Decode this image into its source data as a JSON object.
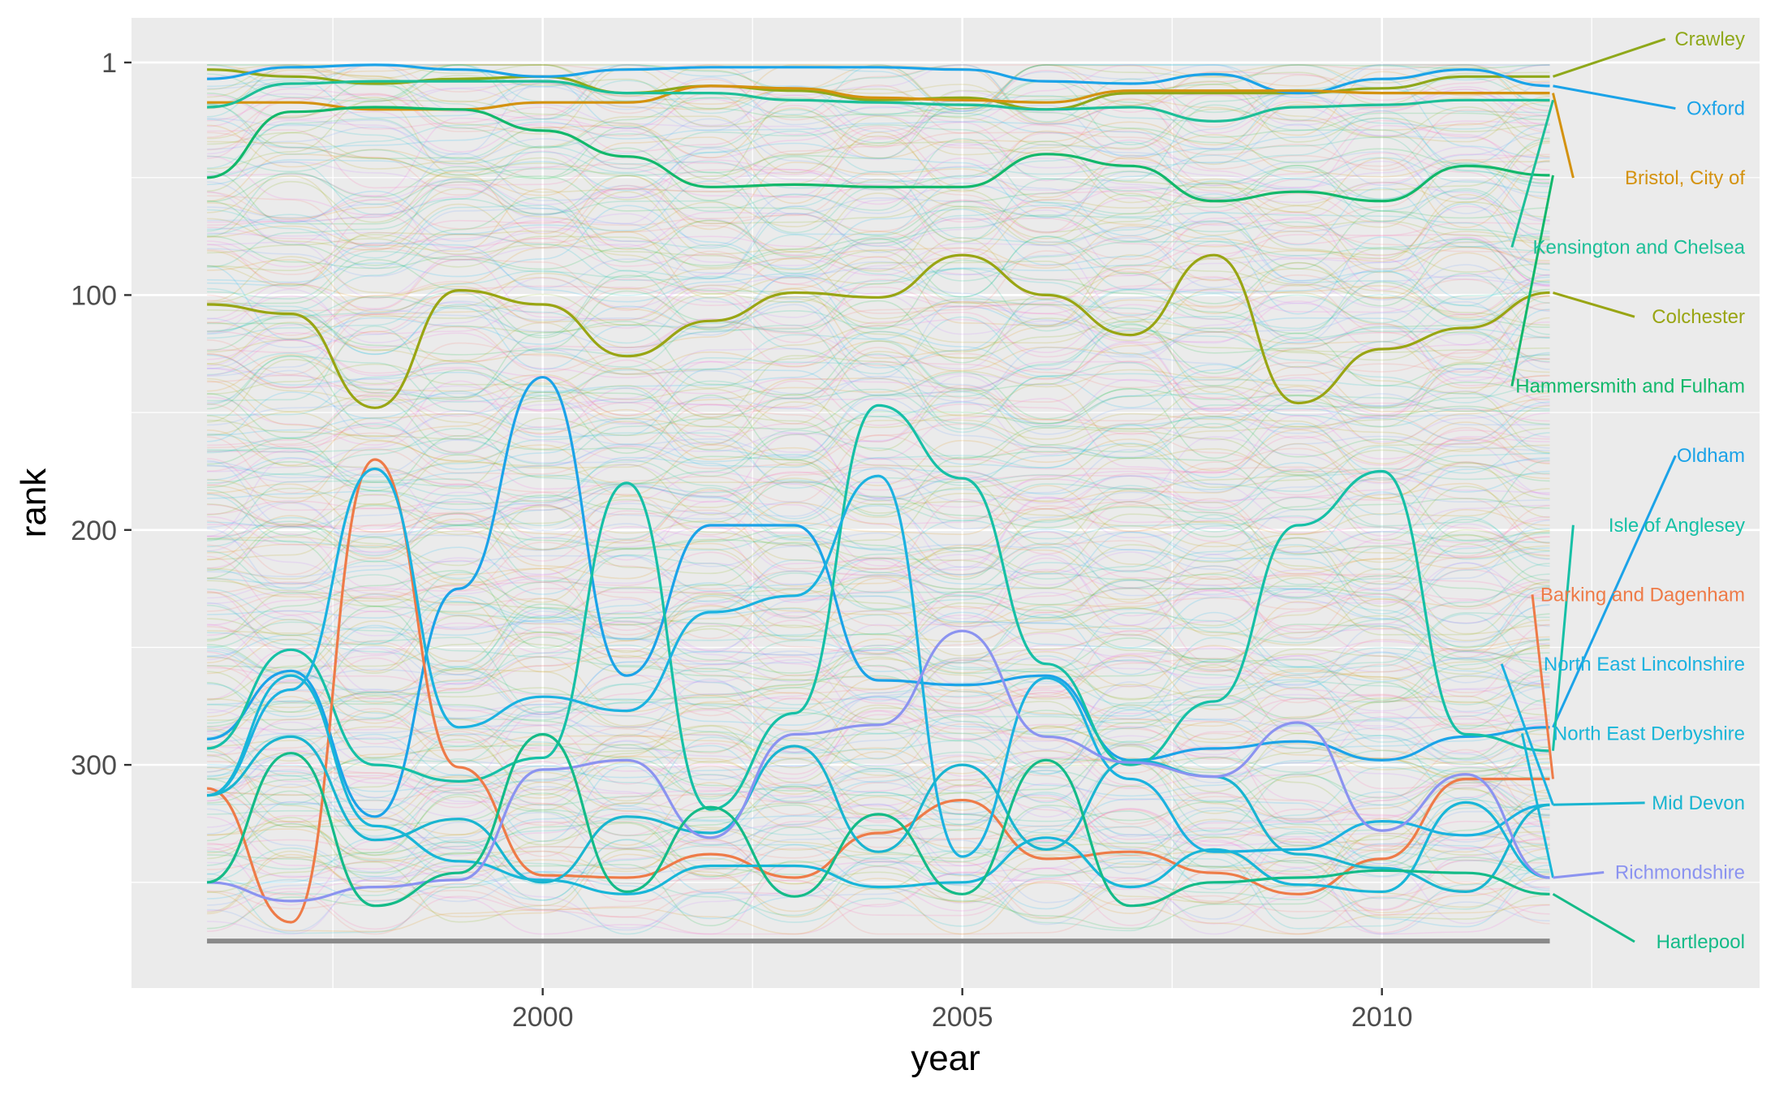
{
  "chart_data": {
    "type": "line",
    "title": "",
    "xlabel": "year",
    "ylabel": "rank",
    "x_ticks": [
      2000,
      2005,
      2010
    ],
    "y_ticks": [
      1,
      100,
      200,
      300
    ],
    "xlim": [
      1995.1,
      2014.5
    ],
    "ylim": [
      395,
      -18
    ],
    "y_reversed": true,
    "grid": true,
    "background": "#ebebeb",
    "x": [
      1996,
      1997,
      1998,
      1999,
      2000,
      2001,
      2002,
      2003,
      2004,
      2005,
      2006,
      2007,
      2008,
      2009,
      2010,
      2011,
      2012
    ],
    "background_series_count": 326,
    "background_bottom_rank": 375,
    "series": [
      {
        "name": "Crawley",
        "color": "#8fa81a",
        "values": [
          4,
          7,
          10,
          8,
          7,
          14,
          11,
          13,
          17,
          16,
          21,
          14,
          14,
          14,
          12,
          7,
          7
        ]
      },
      {
        "name": "Oxford",
        "color": "#1ba3e8",
        "values": [
          8,
          3,
          2,
          4,
          7,
          4,
          3,
          3,
          3,
          4,
          9,
          10,
          6,
          14,
          8,
          4,
          11
        ]
      },
      {
        "name": "Bristol, City of",
        "color": "#d4920f",
        "values": [
          18,
          18,
          21,
          21,
          18,
          18,
          11,
          12,
          16,
          17,
          18,
          13,
          13,
          13,
          14,
          14,
          14
        ]
      },
      {
        "name": "Kensington and Chelsea",
        "color": "#1dbf98",
        "values": [
          20,
          10,
          9,
          9,
          9,
          14,
          14,
          17,
          18,
          19,
          21,
          20,
          26,
          20,
          19,
          17,
          17
        ]
      },
      {
        "name": "Colchester",
        "color": "#99a513",
        "values": [
          104,
          108,
          148,
          98,
          104,
          126,
          111,
          99,
          101,
          83,
          100,
          117,
          83,
          146,
          123,
          114,
          99
        ]
      },
      {
        "name": "Hammersmith and Fulham",
        "color": "#12b86b",
        "values": [
          50,
          22,
          20,
          21,
          30,
          41,
          54,
          53,
          54,
          54,
          40,
          45,
          60,
          56,
          60,
          45,
          49
        ]
      },
      {
        "name": "Oldham",
        "color": "#1ba3e8",
        "values": [
          289,
          260,
          322,
          225,
          135,
          262,
          198,
          198,
          264,
          266,
          262,
          298,
          293,
          290,
          298,
          288,
          284
        ]
      },
      {
        "name": "Isle of Anglesey",
        "color": "#16c0a6",
        "values": [
          293,
          251,
          300,
          307,
          297,
          180,
          319,
          278,
          147,
          178,
          257,
          300,
          273,
          198,
          175,
          287,
          294
        ]
      },
      {
        "name": "Barking and Dagenham",
        "color": "#ee7b48",
        "values": [
          310,
          367,
          170,
          301,
          347,
          348,
          338,
          348,
          329,
          315,
          340,
          337,
          346,
          355,
          340,
          306,
          306
        ]
      },
      {
        "name": "North East Lincolnshire",
        "color": "#1bb2e0",
        "values": [
          313,
          268,
          174,
          284,
          271,
          277,
          235,
          228,
          177,
          339,
          263,
          306,
          337,
          336,
          324,
          330,
          317
        ]
      },
      {
        "name": "North East Derbyshire",
        "color": "#18b6d8",
        "values": [
          313,
          262,
          326,
          341,
          349,
          355,
          343,
          343,
          352,
          350,
          331,
          352,
          336,
          351,
          354,
          316,
          348
        ]
      },
      {
        "name": "Mid Devon",
        "color": "#19b5d0",
        "values": [
          313,
          288,
          332,
          323,
          350,
          322,
          329,
          292,
          337,
          300,
          336,
          298,
          305,
          338,
          344,
          354,
          317
        ]
      },
      {
        "name": "Richmondshire",
        "color": "#8b93f0",
        "values": [
          350,
          358,
          352,
          349,
          302,
          298,
          331,
          287,
          283,
          243,
          288,
          299,
          305,
          282,
          328,
          304,
          348
        ]
      },
      {
        "name": "Hartlepool",
        "color": "#14bb88",
        "values": [
          350,
          295,
          360,
          346,
          287,
          354,
          318,
          356,
          321,
          355,
          298,
          360,
          350,
          348,
          345,
          346,
          355
        ]
      }
    ],
    "labels": [
      {
        "text": "Crawley",
        "color": "#8fa81a"
      },
      {
        "text": "Oxford",
        "color": "#1ba3e8"
      },
      {
        "text": "Bristol, City of",
        "color": "#d4920f"
      },
      {
        "text": "Kensington and Chelsea",
        "color": "#1dbf98"
      },
      {
        "text": "Colchester",
        "color": "#99a513"
      },
      {
        "text": "Hammersmith and Fulham",
        "color": "#12b86b"
      },
      {
        "text": "Oldham",
        "color": "#1ba3e8"
      },
      {
        "text": "Isle of Anglesey",
        "color": "#16c0a6"
      },
      {
        "text": "Barking and Dagenham",
        "color": "#ee7b48"
      },
      {
        "text": "North East Lincolnshire",
        "color": "#1bb2e0"
      },
      {
        "text": "North East Derbyshire",
        "color": "#18b6d8"
      },
      {
        "text": "Mid Devon",
        "color": "#19b5d0"
      },
      {
        "text": "Richmondshire",
        "color": "#8b93f0"
      },
      {
        "text": "Hartlepool",
        "color": "#14bb88"
      }
    ]
  }
}
